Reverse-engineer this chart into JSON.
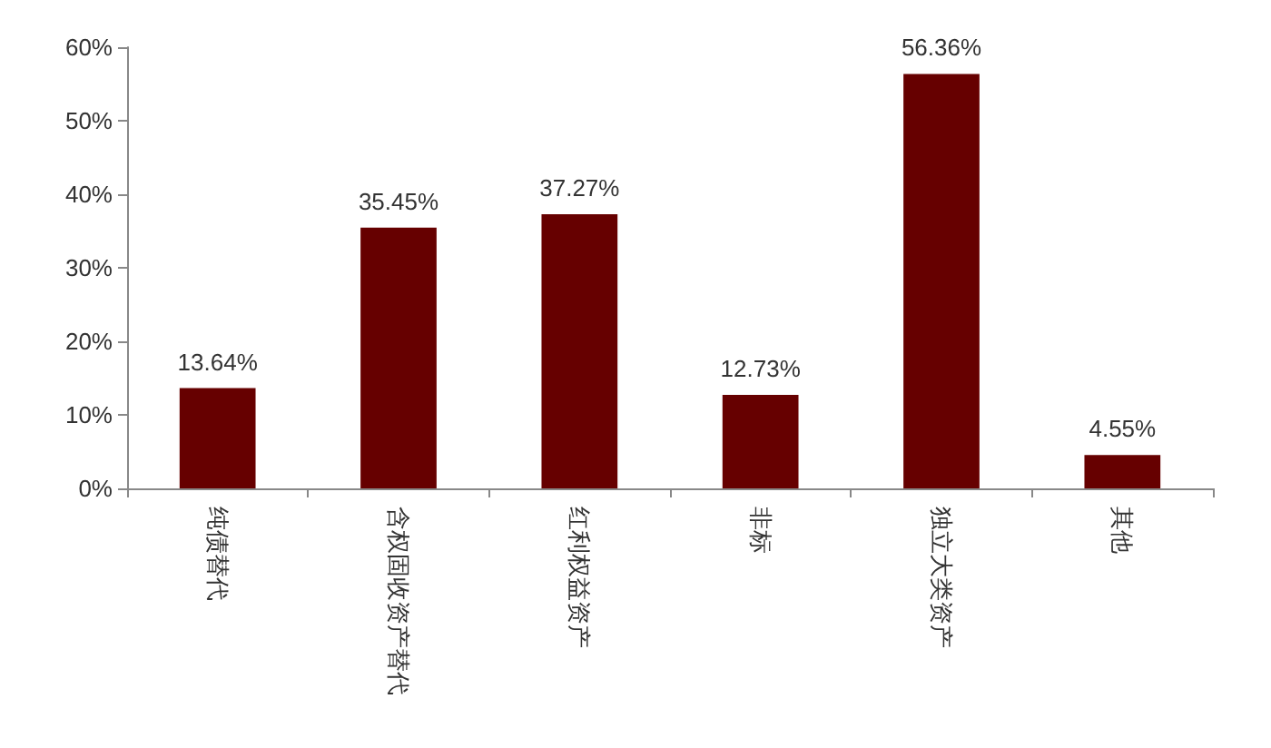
{
  "chart_data": {
    "type": "bar",
    "categories": [
      "纯债替代",
      "含权固收资产替代",
      "红利权益资产",
      "非标",
      "独立大类资产",
      "其他"
    ],
    "values": [
      13.64,
      35.45,
      37.27,
      12.73,
      56.36,
      4.55
    ],
    "value_labels": [
      "13.64%",
      "35.45%",
      "37.27%",
      "12.73%",
      "56.36%",
      "4.55%"
    ],
    "color": "#660000",
    "ylim": [
      0,
      60
    ],
    "yticks": [
      {
        "value": 0,
        "label": "0%"
      },
      {
        "value": 10,
        "label": "10%"
      },
      {
        "value": 20,
        "label": "20%"
      },
      {
        "value": 30,
        "label": "30%"
      },
      {
        "value": 40,
        "label": "40%"
      },
      {
        "value": 50,
        "label": "50%"
      },
      {
        "value": 60,
        "label": "60%"
      }
    ],
    "grid": false
  }
}
